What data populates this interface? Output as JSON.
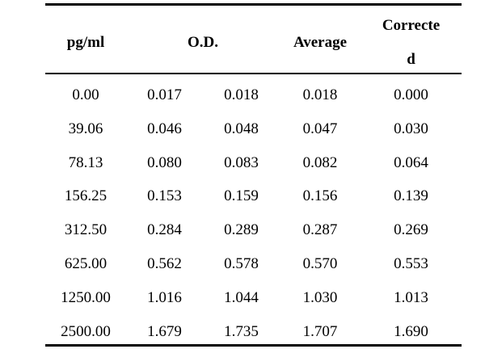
{
  "header": {
    "pg_ml": "pg/ml",
    "od": "O.D.",
    "average": "Average",
    "corrected_line1": "Correcte",
    "corrected_line2": "d"
  },
  "rows": [
    {
      "pg_ml": "0.00",
      "od1": "0.017",
      "od2": "0.018",
      "average": "0.018",
      "corrected": "0.000"
    },
    {
      "pg_ml": "39.06",
      "od1": "0.046",
      "od2": "0.048",
      "average": "0.047",
      "corrected": "0.030"
    },
    {
      "pg_ml": "78.13",
      "od1": "0.080",
      "od2": "0.083",
      "average": "0.082",
      "corrected": "0.064"
    },
    {
      "pg_ml": "156.25",
      "od1": "0.153",
      "od2": "0.159",
      "average": "0.156",
      "corrected": "0.139"
    },
    {
      "pg_ml": "312.50",
      "od1": "0.284",
      "od2": "0.289",
      "average": "0.287",
      "corrected": "0.269"
    },
    {
      "pg_ml": "625.00",
      "od1": "0.562",
      "od2": "0.578",
      "average": "0.570",
      "corrected": "0.553"
    },
    {
      "pg_ml": "1250.00",
      "od1": "1.016",
      "od2": "1.044",
      "average": "1.030",
      "corrected": "1.013"
    },
    {
      "pg_ml": "2500.00",
      "od1": "1.679",
      "od2": "1.735",
      "average": "1.707",
      "corrected": "1.690"
    }
  ]
}
